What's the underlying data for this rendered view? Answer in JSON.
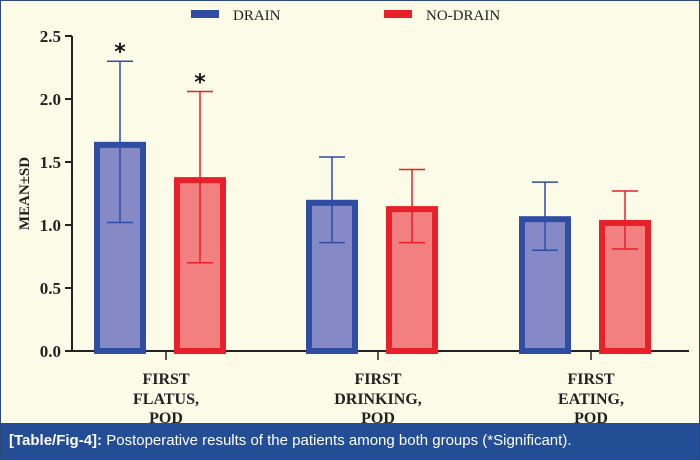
{
  "chart_data": {
    "type": "bar",
    "title": "",
    "xlabel": "",
    "ylabel": "MEAN±SD",
    "ylim": [
      0,
      2.5
    ],
    "yticks": [
      "0.0",
      "0.5",
      "1.0",
      "1.5",
      "2.0",
      "2.5"
    ],
    "ytick_values": [
      0,
      0.5,
      1.0,
      1.5,
      2.0,
      2.5
    ],
    "categories": [
      [
        "FIRST",
        "FLATUS,",
        "POD"
      ],
      [
        "FIRST",
        "DRINKING,",
        "POD"
      ],
      [
        "FIRST",
        "EATING,",
        "POD"
      ]
    ],
    "legend_position": "top",
    "series": [
      {
        "name": "DRAIN",
        "color": "#2f4da3",
        "fill": "#8589c6",
        "values": [
          1.66,
          1.2,
          1.07
        ],
        "sd": [
          0.64,
          0.34,
          0.27
        ],
        "significant": [
          true,
          false,
          false
        ]
      },
      {
        "name": "NO-DRAIN",
        "color": "#e8202a",
        "fill": "#f28080",
        "values": [
          1.38,
          1.15,
          1.04
        ],
        "sd": [
          0.68,
          0.29,
          0.23
        ],
        "significant": [
          true,
          false,
          false
        ]
      }
    ],
    "significance_marker": "*",
    "grid": false
  },
  "caption": {
    "label": "[Table/Fig-4]:",
    "text": "Postoperative results of the patients among both groups (*Significant)."
  }
}
